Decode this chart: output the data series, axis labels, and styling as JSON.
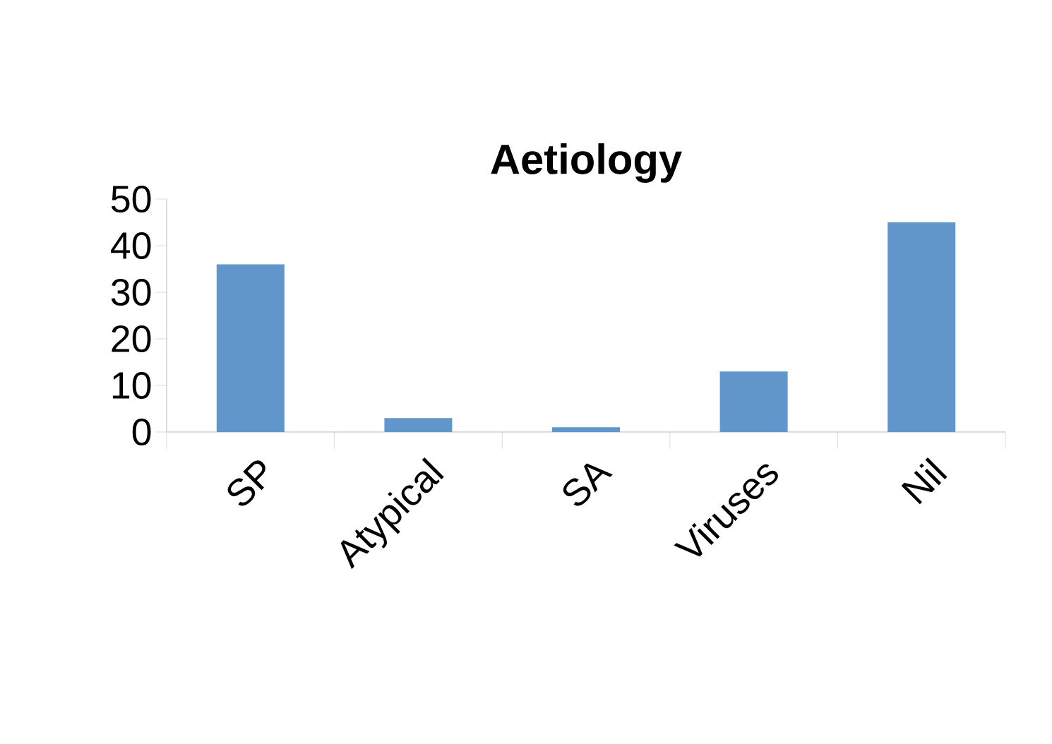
{
  "chart_data": {
    "type": "bar",
    "title": "Aetiology",
    "categories": [
      "SP",
      "Atypical",
      "SA",
      "Viruses",
      "Nil"
    ],
    "values": [
      36,
      3,
      1,
      13,
      45
    ],
    "color": "#6196cb",
    "ylim": [
      0,
      50
    ],
    "yticks": [
      0,
      10,
      20,
      30,
      40,
      50
    ],
    "grid": false
  }
}
